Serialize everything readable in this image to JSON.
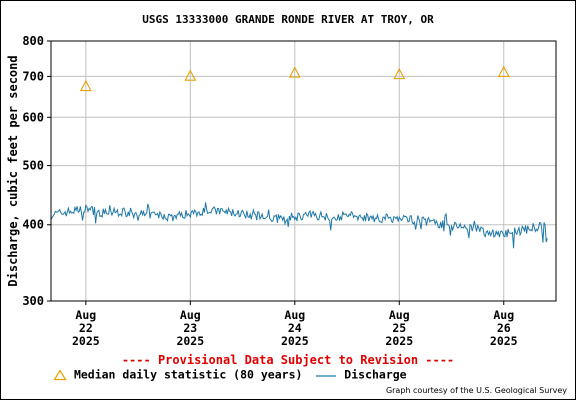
{
  "page": {
    "provisional_note": "---- Provisional Data Subject to Revision ----",
    "credit": "Graph courtesy of the U.S. Geological Survey"
  },
  "chart_data": {
    "type": "line",
    "title": "USGS 13333000 GRANDE RONDE RIVER AT TROY, OR",
    "ylabel": "Discharge, cubic feet per second",
    "xlabel": "",
    "yscale": "log",
    "ylim": [
      300,
      800
    ],
    "yticks": [
      300,
      400,
      500,
      600,
      700,
      800
    ],
    "xlim": [
      "2025-08-21T16:00",
      "2025-08-26T12:00"
    ],
    "xticks": [
      {
        "date": "2025-08-22",
        "label": [
          "Aug",
          "22",
          "2025"
        ]
      },
      {
        "date": "2025-08-23",
        "label": [
          "Aug",
          "23",
          "2025"
        ]
      },
      {
        "date": "2025-08-24",
        "label": [
          "Aug",
          "24",
          "2025"
        ]
      },
      {
        "date": "2025-08-25",
        "label": [
          "Aug",
          "25",
          "2025"
        ]
      },
      {
        "date": "2025-08-26",
        "label": [
          "Aug",
          "26",
          "2025"
        ]
      }
    ],
    "grid": true,
    "colors": {
      "discharge": "#1f78a8",
      "median": "#e8a000",
      "grid": "#c0c0c0"
    },
    "series": [
      {
        "name": "Median daily statistic (80 years)",
        "marker": "triangle",
        "points": [
          {
            "x": "2025-08-22",
            "y": 675
          },
          {
            "x": "2025-08-23",
            "y": 702
          },
          {
            "x": "2025-08-24",
            "y": 710
          },
          {
            "x": "2025-08-25",
            "y": 706
          },
          {
            "x": "2025-08-26",
            "y": 712
          }
        ]
      },
      {
        "name": "Discharge",
        "marker": "none",
        "points": [
          {
            "x": "2025-08-21T16:00",
            "y": 415
          },
          {
            "x": "2025-08-21T20:00",
            "y": 420
          },
          {
            "x": "2025-08-22T00:00",
            "y": 425
          },
          {
            "x": "2025-08-22T04:00",
            "y": 418
          },
          {
            "x": "2025-08-22T08:00",
            "y": 420
          },
          {
            "x": "2025-08-22T12:00",
            "y": 417
          },
          {
            "x": "2025-08-22T16:00",
            "y": 415
          },
          {
            "x": "2025-08-22T20:00",
            "y": 412
          },
          {
            "x": "2025-08-23T00:00",
            "y": 418
          },
          {
            "x": "2025-08-23T04:00",
            "y": 422
          },
          {
            "x": "2025-08-23T08:00",
            "y": 420
          },
          {
            "x": "2025-08-23T12:00",
            "y": 417
          },
          {
            "x": "2025-08-23T16:00",
            "y": 413
          },
          {
            "x": "2025-08-23T20:00",
            "y": 409
          },
          {
            "x": "2025-08-24T00:00",
            "y": 412
          },
          {
            "x": "2025-08-24T04:00",
            "y": 415
          },
          {
            "x": "2025-08-24T08:00",
            "y": 413
          },
          {
            "x": "2025-08-24T12:00",
            "y": 414
          },
          {
            "x": "2025-08-24T16:00",
            "y": 412
          },
          {
            "x": "2025-08-24T20:00",
            "y": 410
          },
          {
            "x": "2025-08-25T00:00",
            "y": 410
          },
          {
            "x": "2025-08-25T04:00",
            "y": 408
          },
          {
            "x": "2025-08-25T08:00",
            "y": 403
          },
          {
            "x": "2025-08-25T12:00",
            "y": 399
          },
          {
            "x": "2025-08-25T16:00",
            "y": 395
          },
          {
            "x": "2025-08-25T20:00",
            "y": 389
          },
          {
            "x": "2025-08-26T00:00",
            "y": 386
          },
          {
            "x": "2025-08-26T04:00",
            "y": 392
          },
          {
            "x": "2025-08-26T08:00",
            "y": 397
          },
          {
            "x": "2025-08-26T10:00",
            "y": 398
          }
        ]
      }
    ]
  }
}
